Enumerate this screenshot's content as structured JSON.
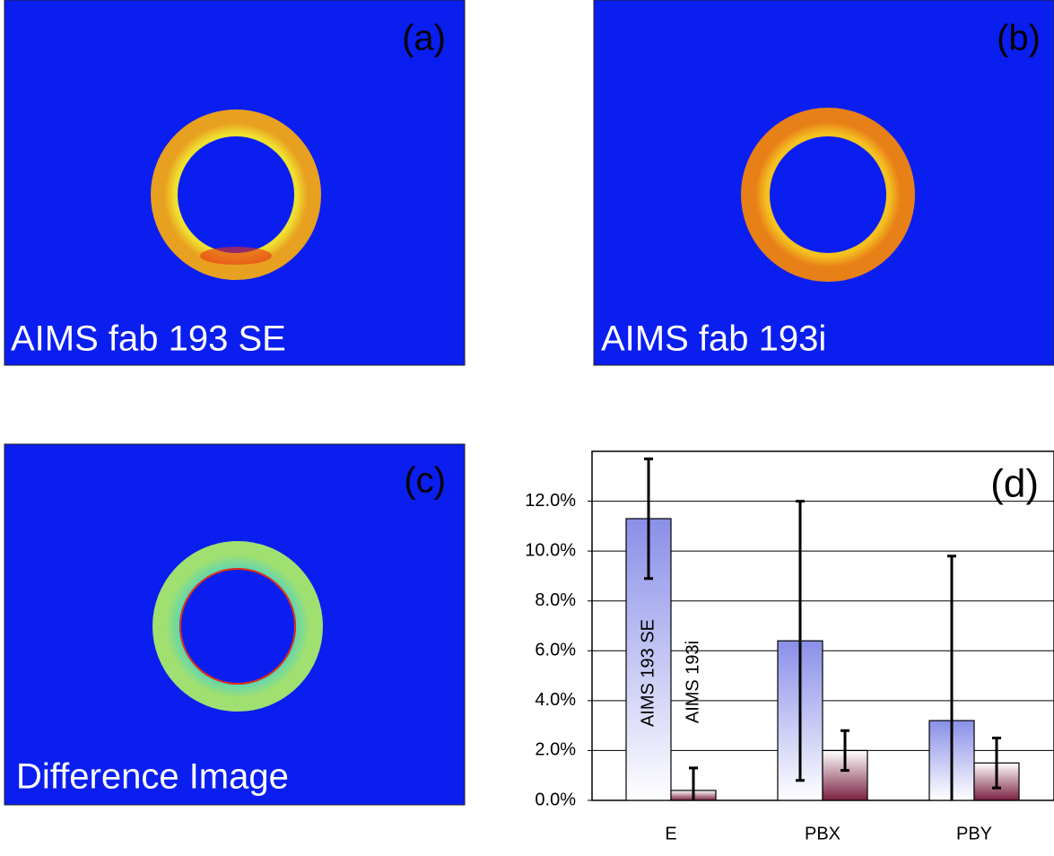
{
  "panels": [
    {
      "tag": "(a)",
      "caption": "AIMS fab 193 SE"
    },
    {
      "tag": "(b)",
      "caption": "AIMS fab 193i"
    },
    {
      "tag": "(c)",
      "caption": "Difference Image"
    }
  ],
  "chart_data": {
    "type": "bar",
    "panel_tag": "(d)",
    "categories": [
      "E",
      "PBX",
      "PBY"
    ],
    "series": [
      {
        "name": "AIMS 193 SE",
        "color": "#8a8fe8",
        "values": [
          11.3,
          6.4,
          3.2
        ],
        "errors": [
          2.4,
          5.6,
          6.6
        ]
      },
      {
        "name": "AIMS 193i",
        "color": "#7a2040",
        "values": [
          0.4,
          2.0,
          1.5
        ],
        "errors": [
          0.9,
          0.8,
          1.0
        ]
      }
    ],
    "ylim": [
      0,
      14
    ],
    "yticks": [
      {
        "value": 0,
        "label": "0.0%"
      },
      {
        "value": 2,
        "label": "2.0%"
      },
      {
        "value": 4,
        "label": "4.0%"
      },
      {
        "value": 6,
        "label": "6.0%"
      },
      {
        "value": 8,
        "label": "8.0%"
      },
      {
        "value": 10,
        "label": "10.0%"
      },
      {
        "value": 12,
        "label": "12.0%"
      }
    ],
    "grid": true
  }
}
